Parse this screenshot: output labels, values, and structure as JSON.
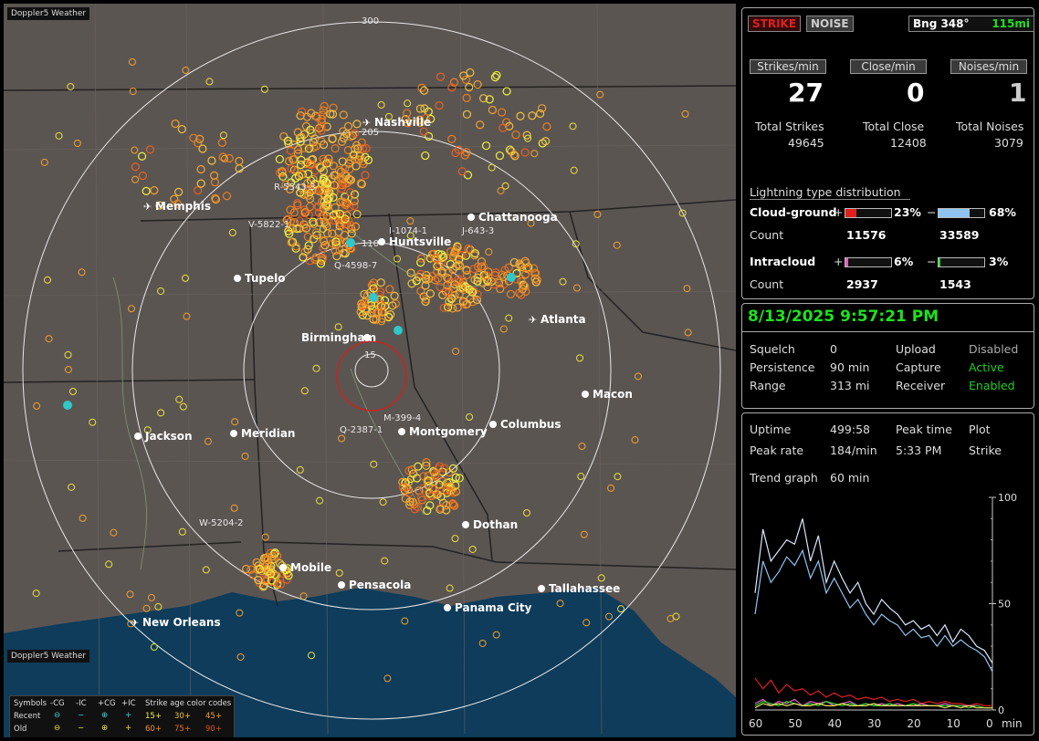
{
  "map": {
    "app_name": "Doppler5 Weather",
    "range_label": "300",
    "range_label_205": "205",
    "range_label_110": "110",
    "range_label_15": "15",
    "cities": [
      {
        "name": "Nashville",
        "icon": "airport-icon"
      },
      {
        "name": "Memphis",
        "icon": "airport-icon"
      },
      {
        "name": "Chattanooga",
        "icon": "city-dot-icon"
      },
      {
        "name": "Huntsville",
        "icon": "city-dot-icon"
      },
      {
        "name": "Tupelo",
        "icon": "city-dot-icon"
      },
      {
        "name": "Atlanta",
        "icon": "airport-icon"
      },
      {
        "name": "Birmingham",
        "icon": "city-dot-icon"
      },
      {
        "name": "Macon",
        "icon": "city-dot-icon"
      },
      {
        "name": "Jackson",
        "icon": "city-dot-icon"
      },
      {
        "name": "Meridian",
        "icon": "city-dot-icon"
      },
      {
        "name": "Montgomery",
        "icon": "city-dot-icon"
      },
      {
        "name": "Columbus",
        "icon": "city-dot-icon"
      },
      {
        "name": "Dothan",
        "icon": "city-dot-icon"
      },
      {
        "name": "Mobile",
        "icon": "city-dot-icon"
      },
      {
        "name": "Pensacola",
        "icon": "city-dot-icon"
      },
      {
        "name": "Tallahassee",
        "icon": "city-dot-icon"
      },
      {
        "name": "Panama City",
        "icon": "city-dot-icon"
      },
      {
        "name": "New Orleans",
        "icon": "airport-icon"
      }
    ],
    "storm_tags": [
      "R-5543-3",
      "V-5822-1",
      "I-1074-1",
      "J-643-3",
      "Q-4598-7",
      "M-399-4",
      "Q-2387-1",
      "W-5204-2"
    ],
    "legend": {
      "symbols_label": "Symbols",
      "cols": [
        "-CG",
        "-IC",
        "+CG",
        "+IC"
      ],
      "recent": "Recent",
      "old": "Old",
      "age_title": "Strike age color codes",
      "recent_ages": [
        "15+",
        "30+",
        "45+"
      ],
      "old_ages": [
        "60+",
        "75+",
        "90+"
      ]
    }
  },
  "status": {
    "strike_btn": "STRIKE",
    "noise_btn": "NOISE",
    "bearing": "Bng 348°",
    "distance": "115mi",
    "strikes_min_label": "Strikes/min",
    "close_min_label": "Close/min",
    "noises_min_label": "Noises/min",
    "strikes_min": "27",
    "close_min": "0",
    "noises_min": "1",
    "total_strikes_label": "Total Strikes",
    "total_close_label": "Total Close",
    "total_noises_label": "Total Noises",
    "total_strikes": "49645",
    "total_close": "12408",
    "total_noises": "3079",
    "dist_title": "Lightning type distribution",
    "cg_label": "Cloud-ground",
    "ic_label": "Intracloud",
    "count_label": "Count",
    "plus": "+",
    "minus": "−",
    "cg_pos_pct": "23%",
    "cg_neg_pct": "68%",
    "cg_pos_count": "11576",
    "cg_neg_count": "33589",
    "ic_pos_pct": "6%",
    "ic_neg_pct": "3%",
    "ic_pos_count": "2937",
    "ic_neg_count": "1543",
    "cg_pos_frac": 0.23,
    "cg_neg_frac": 0.68,
    "ic_pos_frac": 0.06,
    "ic_neg_frac": 0.03
  },
  "settings": {
    "datetime": "8/13/2025 9:57:21 PM",
    "squelch_label": "Squelch",
    "squelch": "0",
    "persistence_label": "Persistence",
    "persistence": "90 min",
    "range_label": "Range",
    "range": "313 mi",
    "upload_label": "Upload",
    "upload": "Disabled",
    "capture_label": "Capture",
    "capture": "Active",
    "receiver_label": "Receiver",
    "receiver": "Enabled"
  },
  "trend": {
    "uptime_label": "Uptime",
    "uptime": "499:58",
    "peak_time_label": "Peak time",
    "peak_time": "5:33 PM",
    "plot_label": "Plot",
    "plot": "Strike",
    "peak_rate_label": "Peak rate",
    "peak_rate": "184/min",
    "trend_label": "Trend graph",
    "trend_window": "60 min",
    "y_ticks": [
      "100",
      "50",
      "0"
    ],
    "x_ticks": [
      "60",
      "50",
      "40",
      "30",
      "20",
      "10",
      "0"
    ],
    "x_unit": "min",
    "colors": {
      "total": "#d8e8ff",
      "cg_neg": "#8fc4f0",
      "cg_pos": "#e02020",
      "ic_pos": "#e060c0",
      "ic_neg": "#30d030",
      "close": "#e8e060"
    }
  },
  "colors": {
    "strike_btn": "#e02020",
    "green_value": "#20e020",
    "active": "#20d020",
    "datetime": "#20e020"
  },
  "chart_data": {
    "type": "line",
    "title": "",
    "xlabel": "min",
    "ylabel": "",
    "xlim": [
      60,
      0
    ],
    "ylim": [
      0,
      100
    ],
    "x": [
      60,
      58,
      56,
      54,
      52,
      50,
      48,
      46,
      44,
      42,
      40,
      38,
      36,
      34,
      32,
      30,
      28,
      26,
      24,
      22,
      20,
      18,
      16,
      14,
      12,
      10,
      8,
      6,
      4,
      2,
      0
    ],
    "series": [
      {
        "name": "",
        "values": [
          55,
          85,
          70,
          75,
          80,
          78,
          90,
          70,
          82,
          60,
          70,
          62,
          55,
          60,
          50,
          45,
          52,
          48,
          45,
          40,
          42,
          38,
          40,
          35,
          40,
          32,
          38,
          35,
          30,
          28,
          22
        ]
      },
      {
        "name": "",
        "values": [
          45,
          70,
          60,
          65,
          72,
          68,
          75,
          62,
          70,
          55,
          62,
          55,
          48,
          52,
          45,
          40,
          45,
          42,
          40,
          35,
          38,
          34,
          35,
          30,
          35,
          30,
          33,
          30,
          28,
          25,
          18
        ]
      },
      {
        "name": "",
        "values": [
          15,
          10,
          14,
          8,
          12,
          9,
          10,
          7,
          9,
          6,
          8,
          6,
          7,
          5,
          6,
          5,
          6,
          4,
          5,
          4,
          5,
          3,
          4,
          3,
          4,
          3,
          3,
          2,
          3,
          2,
          2
        ]
      },
      {
        "name": "",
        "values": [
          3,
          5,
          2,
          4,
          3,
          5,
          2,
          4,
          3,
          4,
          2,
          3,
          4,
          2,
          3,
          2,
          3,
          2,
          3,
          2,
          2,
          3,
          2,
          2,
          3,
          2,
          2,
          2,
          2,
          1,
          1
        ]
      },
      {
        "name": "",
        "values": [
          2,
          4,
          3,
          2,
          4,
          3,
          2,
          3,
          2,
          4,
          3,
          2,
          3,
          2,
          3,
          2,
          2,
          3,
          2,
          2,
          3,
          2,
          2,
          2,
          2,
          2,
          2,
          1,
          2,
          1,
          1
        ]
      },
      {
        "name": "",
        "values": [
          1,
          3,
          2,
          3,
          2,
          3,
          2,
          2,
          3,
          2,
          2,
          3,
          2,
          2,
          2,
          3,
          2,
          2,
          2,
          2,
          2,
          2,
          2,
          2,
          1,
          2,
          1,
          2,
          1,
          1,
          1
        ]
      }
    ]
  }
}
